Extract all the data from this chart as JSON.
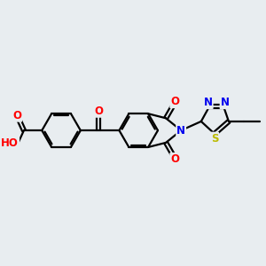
{
  "background_color": "#e8edf0",
  "bond_color": "#000000",
  "line_width": 1.6,
  "atom_colors": {
    "O": "#ff0000",
    "N": "#0000ee",
    "S": "#bbbb00",
    "H": "#777777",
    "C": "#000000"
  },
  "font_size": 8.5,
  "fig_width": 3.0,
  "fig_height": 3.0,
  "dpi": 100
}
